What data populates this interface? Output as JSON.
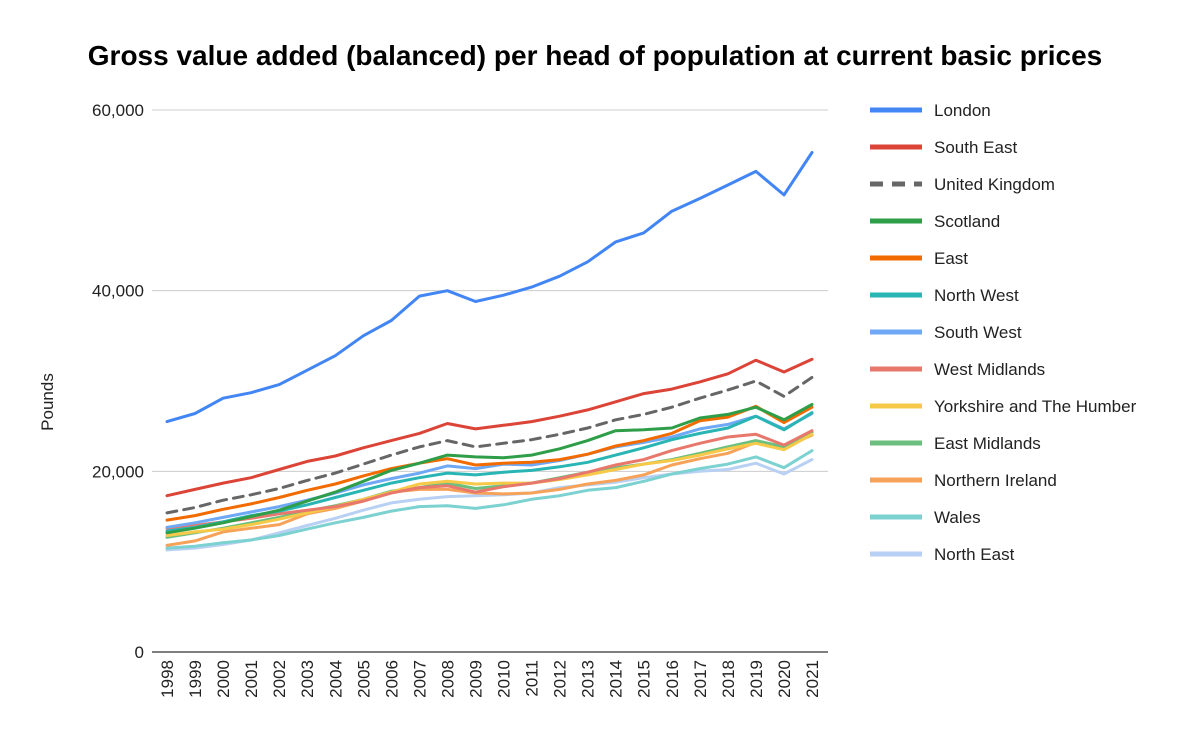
{
  "chart_data": {
    "type": "line",
    "title": "Gross value added (balanced) per head of population at current basic prices",
    "xlabel": "",
    "ylabel": "Pounds",
    "ylim": [
      0,
      60000
    ],
    "yticks": [
      0,
      20000,
      40000,
      60000
    ],
    "ytick_labels": [
      "0",
      "20,000",
      "40,000",
      "60,000"
    ],
    "grid": true,
    "legend_position": "right",
    "categories": [
      "1998",
      "1999",
      "2000",
      "2001",
      "2002",
      "2003",
      "2004",
      "2005",
      "2006",
      "2007",
      "2008",
      "2009",
      "2010",
      "2011",
      "2012",
      "2013",
      "2014",
      "2015",
      "2016",
      "2017",
      "2018",
      "2019",
      "2020",
      "2021"
    ],
    "series": [
      {
        "name": "London",
        "color": "#4285f4",
        "dash": false,
        "values": [
          25500,
          26400,
          28100,
          28700,
          29600,
          31200,
          32800,
          35000,
          36700,
          39400,
          40000,
          38800,
          39500,
          40400,
          41600,
          43200,
          45400,
          46400,
          48800,
          50200,
          51700,
          53200,
          50600,
          55300
        ]
      },
      {
        "name": "South East",
        "color": "#db4437",
        "dash": false,
        "values": [
          17300,
          18000,
          18700,
          19300,
          20200,
          21100,
          21700,
          22600,
          23400,
          24200,
          25300,
          24700,
          25100,
          25500,
          26100,
          26800,
          27700,
          28600,
          29100,
          29900,
          30800,
          32300,
          31000,
          32400
        ]
      },
      {
        "name": "United Kingdom",
        "color": "#666666",
        "dash": true,
        "values": [
          15400,
          16000,
          16800,
          17400,
          18100,
          19000,
          19800,
          20800,
          21800,
          22700,
          23400,
          22700,
          23100,
          23500,
          24100,
          24800,
          25700,
          26300,
          27100,
          28100,
          29000,
          30000,
          28300,
          30400
        ]
      },
      {
        "name": "Scotland",
        "color": "#2e9e48",
        "dash": false,
        "values": [
          13200,
          13700,
          14300,
          15000,
          15700,
          16700,
          17700,
          18900,
          20100,
          20900,
          21800,
          21600,
          21500,
          21800,
          22500,
          23400,
          24500,
          24600,
          24800,
          25900,
          26300,
          27100,
          25700,
          27400
        ]
      },
      {
        "name": "East",
        "color": "#f26b00",
        "dash": false,
        "values": [
          14600,
          15100,
          15800,
          16400,
          17100,
          17900,
          18600,
          19500,
          20300,
          20900,
          21400,
          20700,
          20900,
          21000,
          21300,
          21900,
          22800,
          23400,
          24200,
          25600,
          26000,
          27200,
          25400,
          27100
        ]
      },
      {
        "name": "North West",
        "color": "#2ab5b5",
        "dash": false,
        "values": [
          13400,
          13800,
          14400,
          15100,
          15600,
          16300,
          17100,
          17900,
          18700,
          19300,
          19800,
          19600,
          19900,
          20100,
          20500,
          21000,
          21800,
          22600,
          23500,
          24200,
          24800,
          26100,
          24600,
          26500
        ]
      },
      {
        "name": "South West",
        "color": "#6fa8f5",
        "dash": false,
        "values": [
          13800,
          14300,
          14900,
          15500,
          16100,
          16800,
          17600,
          18500,
          19200,
          19800,
          20600,
          20300,
          20800,
          20700,
          21200,
          21900,
          22700,
          23200,
          23800,
          24700,
          25200,
          26100,
          24700,
          26400
        ]
      },
      {
        "name": "West Midlands",
        "color": "#e8776c",
        "dash": false,
        "values": [
          13700,
          14000,
          14400,
          14800,
          15300,
          15700,
          16100,
          16700,
          17600,
          18200,
          18400,
          17700,
          18300,
          18700,
          19200,
          19900,
          20700,
          21300,
          22300,
          23100,
          23800,
          24100,
          22900,
          24500
        ]
      },
      {
        "name": "Yorkshire and The Humber",
        "color": "#f7c948",
        "dash": false,
        "values": [
          12900,
          13300,
          13600,
          14100,
          14700,
          15400,
          16100,
          16900,
          17700,
          18600,
          18900,
          18600,
          18700,
          18700,
          19100,
          19600,
          20200,
          20800,
          21200,
          21800,
          22500,
          23100,
          22400,
          24100
        ]
      },
      {
        "name": "East Midlands",
        "color": "#6cbf7f",
        "dash": false,
        "values": [
          12700,
          13200,
          13700,
          14300,
          14900,
          15600,
          16200,
          16900,
          17800,
          18200,
          18700,
          18100,
          18400,
          18700,
          19300,
          19900,
          20400,
          20800,
          21300,
          22000,
          22700,
          23400,
          22700,
          24300
        ]
      },
      {
        "name": "Northern Ireland",
        "color": "#f7a259",
        "dash": false,
        "values": [
          11800,
          12300,
          13300,
          13700,
          14100,
          15300,
          15900,
          16700,
          17700,
          18000,
          18000,
          17600,
          17500,
          17600,
          18000,
          18600,
          19000,
          19600,
          20700,
          21400,
          22000,
          23200,
          22700,
          24000
        ]
      },
      {
        "name": "Wales",
        "color": "#7cd1d1",
        "dash": false,
        "values": [
          11500,
          11700,
          12100,
          12400,
          12900,
          13600,
          14300,
          14900,
          15600,
          16100,
          16200,
          15900,
          16300,
          16900,
          17300,
          17900,
          18200,
          18900,
          19700,
          20300,
          20800,
          21600,
          20400,
          22300
        ]
      },
      {
        "name": "North East",
        "color": "#b8d0f3",
        "dash": false,
        "values": [
          11300,
          11500,
          11900,
          12400,
          13200,
          14000,
          14800,
          15700,
          16500,
          16900,
          17200,
          17300,
          17400,
          17600,
          18200,
          18500,
          18800,
          19300,
          19700,
          20000,
          20200,
          20900,
          19700,
          21300
        ]
      }
    ]
  }
}
